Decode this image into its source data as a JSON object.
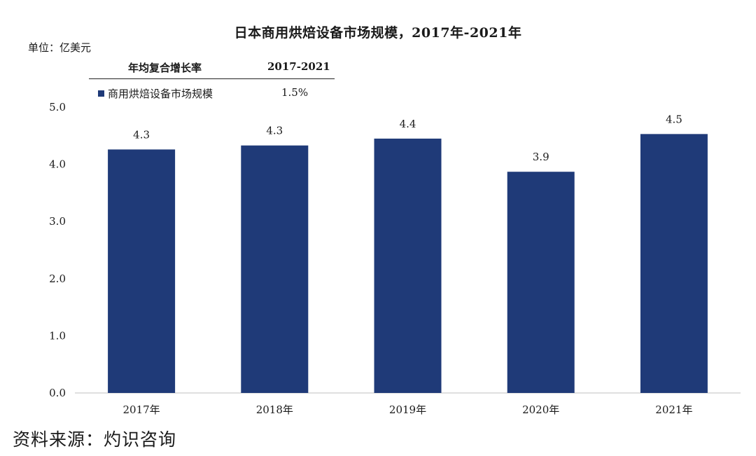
{
  "chart_data": {
    "type": "bar",
    "title": "日本商用烘焙设备市场规模，2017年-2021年",
    "unit_label": "单位：亿美元",
    "categories": [
      "2017年",
      "2018年",
      "2019年",
      "2020年",
      "2021年"
    ],
    "series": [
      {
        "name": "商用烘焙设备市场规模",
        "values": [
          4.26,
          4.33,
          4.45,
          3.87,
          4.53
        ],
        "labels": [
          "4.3",
          "4.3",
          "4.4",
          "3.9",
          "4.5"
        ],
        "color": "#1f3a78"
      }
    ],
    "ylim": [
      0,
      5
    ],
    "yticks": [
      0,
      1,
      2,
      3,
      4,
      5
    ],
    "ytick_labels": [
      "0.0",
      "1.0",
      "2.0",
      "3.0",
      "4.0",
      "5.0"
    ],
    "cagr_table": {
      "header_left": "年均复合增长率",
      "header_right": "2017-2021",
      "value": "1.5%"
    },
    "source": "资料来源：灼识咨询"
  }
}
